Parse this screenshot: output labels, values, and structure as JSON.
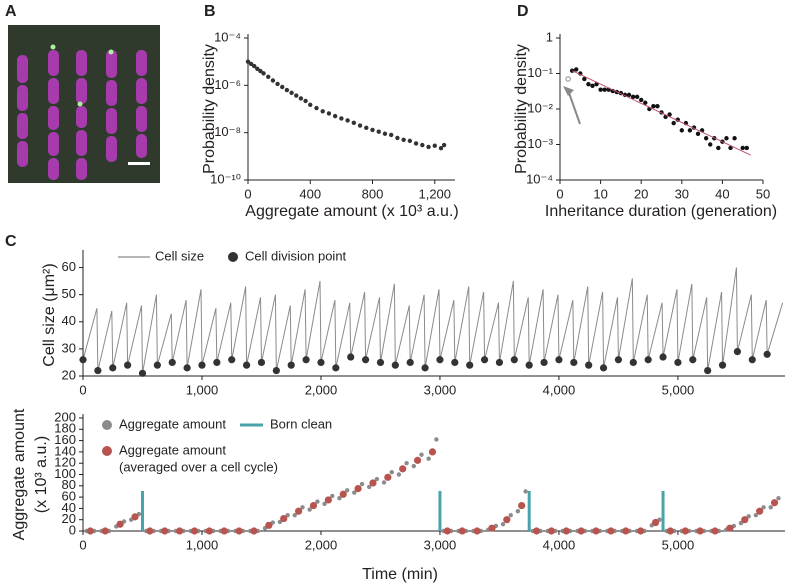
{
  "chart_data": [
    {
      "type": "image",
      "label": "A"
    },
    {
      "type": "scatter",
      "label": "B",
      "xlabel": "Aggregate amount (x 10³ a.u.)",
      "ylabel": "Probability density",
      "xlim": [
        0,
        1330
      ],
      "ylim": [
        1e-10,
        0.0001
      ],
      "ylog": true,
      "xticks": [
        0,
        400,
        800,
        {
          "value": 1200,
          "label": "1,200"
        }
      ],
      "yticks": [
        {
          "value": 1e-10,
          "label": "10⁻¹⁰"
        },
        {
          "value": 1e-08,
          "label": "10⁻⁸"
        },
        {
          "value": 1e-06,
          "label": "10⁻⁶"
        },
        {
          "value": 0.0001,
          "label": "10⁻⁴"
        }
      ],
      "series": [
        {
          "color": "#333333",
          "x": [
            0,
            20,
            40,
            60,
            80,
            100,
            130,
            160,
            190,
            220,
            250,
            280,
            310,
            340,
            370,
            400,
            440,
            480,
            520,
            560,
            600,
            640,
            680,
            720,
            760,
            800,
            840,
            880,
            920,
            960,
            1000,
            1040,
            1080,
            1120,
            1160,
            1200,
            1240,
            1260
          ],
          "values": [
            1e-05,
            8e-06,
            6.5e-06,
            5e-06,
            4e-06,
            3.2e-06,
            2.3e-06,
            1.6e-06,
            1.15e-06,
            8.5e-07,
            6.3e-07,
            4.8e-07,
            3.7e-07,
            2.8e-07,
            2.2e-07,
            1.5e-07,
            1.1e-07,
            8e-08,
            6.5e-08,
            5e-08,
            4e-08,
            3.3e-08,
            2.6e-08,
            2e-08,
            1.6e-08,
            1.3e-08,
            1.1e-08,
            9e-09,
            8e-09,
            6e-09,
            5e-09,
            4.5e-09,
            3.5e-09,
            3e-09,
            2.5e-09,
            2.8e-09,
            2.2e-09,
            3e-09
          ]
        }
      ]
    },
    {
      "type": "scatter",
      "label": "D",
      "xlabel": "Inheritance duration (generation)",
      "ylabel": "Probability density",
      "xlim": [
        0,
        50
      ],
      "ylim": [
        0.0001,
        1
      ],
      "ylog": true,
      "xticks": [
        0,
        10,
        20,
        30,
        40,
        50
      ],
      "yticks": [
        {
          "value": 0.0001,
          "label": "10⁻⁴"
        },
        {
          "value": 0.001,
          "label": "10⁻³"
        },
        {
          "value": 0.01,
          "label": "10⁻²"
        },
        {
          "value": 0.1,
          "label": "10⁻¹"
        },
        1
      ],
      "series": [
        {
          "color": "#111111",
          "x": [
            3,
            4,
            5,
            6,
            7,
            8,
            9,
            10,
            11,
            12,
            13,
            14,
            15,
            16,
            17,
            18,
            19,
            20,
            21,
            22,
            23,
            24,
            25,
            26,
            27,
            28,
            29,
            30,
            31,
            32,
            33,
            34,
            35,
            36,
            37,
            38,
            39,
            40,
            41,
            42,
            43,
            45,
            46
          ],
          "values": [
            0.12,
            0.13,
            0.1,
            0.07,
            0.05,
            0.045,
            0.05,
            0.035,
            0.035,
            0.035,
            0.032,
            0.03,
            0.028,
            0.025,
            0.025,
            0.022,
            0.022,
            0.018,
            0.015,
            0.01,
            0.012,
            0.012,
            0.008,
            0.006,
            0.007,
            0.004,
            0.005,
            0.0025,
            0.004,
            0.0025,
            0.003,
            0.002,
            0.0025,
            0.0015,
            0.001,
            0.0015,
            0.0008,
            0.0012,
            0.0015,
            0.0008,
            0.0015,
            0.0008,
            0.0008
          ]
        },
        {
          "color": "#888888",
          "hollow": true,
          "x": [
            2
          ],
          "values": [
            0.07
          ]
        },
        {
          "type": "line",
          "color": "#c0506a",
          "x": [
            3,
            47
          ],
          "values": [
            0.12,
            0.0005
          ]
        }
      ]
    },
    {
      "type": "line",
      "label": "C",
      "ylabel": "Cell size (μm²)",
      "xlim": [
        0,
        5900
      ],
      "ylim": [
        20,
        65
      ],
      "xticks": [
        0,
        {
          "value": 1000,
          "label": "1,000"
        },
        {
          "value": 2000,
          "label": "2,000"
        },
        {
          "value": 3000,
          "label": "3,000"
        },
        {
          "value": 4000,
          "label": "4,000"
        },
        {
          "value": 5000,
          "label": "5,000"
        }
      ],
      "yticks": [
        20,
        30,
        40,
        50,
        60
      ],
      "series": [
        {
          "name": "Cell size",
          "type": "line",
          "color": "#8a8a8a",
          "x": [
            0,
            117,
            125,
            242,
            250,
            367,
            375,
            492,
            500,
            617,
            625,
            742,
            750,
            867,
            875,
            992,
            1000,
            1117,
            1125,
            1242,
            1250,
            1367,
            1375,
            1492,
            1500,
            1617,
            1625,
            1742,
            1750,
            1867,
            1875,
            1992,
            2000,
            2117,
            2125,
            2242,
            2250,
            2367,
            2375,
            2492,
            2500,
            2617,
            2625,
            2742,
            2750,
            2867,
            2875,
            2992,
            3000,
            3117,
            3125,
            3242,
            3250,
            3367,
            3375,
            3492,
            3500,
            3617,
            3625,
            3742,
            3750,
            3867,
            3875,
            3992,
            4000,
            4117,
            4125,
            4242,
            4250,
            4367,
            4375,
            4492,
            4500,
            4617,
            4625,
            4742,
            4750,
            4867,
            4875,
            4992,
            5000,
            5117,
            5125,
            5242,
            5250,
            5367,
            5375,
            5492,
            5500,
            5617,
            5625,
            5742,
            5750,
            5880
          ],
          "values": [
            26,
            45,
            22,
            44,
            23,
            47,
            24,
            46,
            21,
            50,
            24,
            43,
            25,
            48,
            23,
            52,
            24,
            45,
            25,
            47,
            26,
            53,
            24,
            49,
            25,
            50,
            22,
            46,
            24,
            52,
            26,
            55,
            25,
            48,
            23,
            47,
            27,
            51,
            26,
            49,
            25,
            54,
            24,
            46,
            25,
            50,
            23,
            52,
            26,
            48,
            25,
            53,
            24,
            51,
            26,
            47,
            25,
            55,
            26,
            49,
            24,
            52,
            25,
            50,
            26,
            48,
            25,
            53,
            24,
            51,
            23,
            49,
            26,
            56,
            25,
            50,
            26,
            47,
            27,
            52,
            25,
            54,
            26,
            49,
            22,
            51,
            24,
            60,
            29,
            50,
            26,
            48,
            28,
            47
          ]
        },
        {
          "name": "Cell division point",
          "type": "scatter",
          "color": "#333333",
          "x": [
            0,
            125,
            250,
            375,
            500,
            625,
            750,
            875,
            1000,
            1125,
            1250,
            1375,
            1500,
            1625,
            1750,
            1875,
            2000,
            2125,
            2250,
            2375,
            2500,
            2625,
            2750,
            2875,
            3000,
            3125,
            3250,
            3375,
            3500,
            3625,
            3750,
            3875,
            4000,
            4125,
            4250,
            4375,
            4500,
            4625,
            4750,
            4875,
            5000,
            5125,
            5250,
            5375,
            5500,
            5625,
            5750
          ],
          "values": [
            26,
            22,
            23,
            24,
            21,
            24,
            25,
            23,
            24,
            25,
            26,
            24,
            25,
            22,
            24,
            26,
            25,
            23,
            27,
            26,
            25,
            24,
            25,
            23,
            26,
            25,
            24,
            26,
            25,
            26,
            24,
            25,
            26,
            25,
            24,
            23,
            26,
            25,
            26,
            27,
            25,
            26,
            22,
            24,
            29,
            26,
            28
          ]
        }
      ]
    },
    {
      "type": "scatter",
      "ylabel": [
        "Aggregate amount",
        "(x 10³ a.u.)"
      ],
      "xlabel": "Time (min)",
      "xlim": [
        0,
        5900
      ],
      "ylim": [
        0,
        200
      ],
      "xticks": [
        0,
        {
          "value": 1000,
          "label": "1,000"
        },
        {
          "value": 2000,
          "label": "2,000"
        },
        {
          "value": 3000,
          "label": "3,000"
        },
        {
          "value": 4000,
          "label": "4,000"
        },
        {
          "value": 5000,
          "label": "5,000"
        }
      ],
      "yticks": [
        0,
        20,
        40,
        60,
        80,
        100,
        120,
        140,
        160,
        180,
        200
      ],
      "series": [
        {
          "name": "Aggregate amount",
          "type": "scatter",
          "color": "#8c8c8c",
          "x": [
            30,
            95,
            155,
            220,
            280,
            345,
            405,
            470,
            530,
            595,
            655,
            720,
            780,
            845,
            905,
            970,
            1030,
            1095,
            1155,
            1220,
            1280,
            1345,
            1405,
            1470,
            1530,
            1595,
            1655,
            1720,
            1780,
            1845,
            1905,
            1970,
            2030,
            2095,
            2155,
            2220,
            2280,
            2345,
            2405,
            2470,
            2530,
            2595,
            2655,
            2720,
            2780,
            2845,
            2905,
            2970,
            3030,
            3095,
            3155,
            3220,
            3280,
            3345,
            3405,
            3470,
            3530,
            3595,
            3655,
            3720,
            3780,
            3845,
            3905,
            3970,
            4030,
            4095,
            4155,
            4220,
            4280,
            4345,
            4405,
            4470,
            4530,
            4595,
            4655,
            4720,
            4780,
            4845,
            4905,
            4970,
            5030,
            5095,
            5155,
            5220,
            5280,
            5345,
            5405,
            5470,
            5530,
            5595,
            5655,
            5720,
            5780,
            5845
          ],
          "values": [
            0,
            0,
            0,
            0,
            8,
            17,
            20,
            30,
            0,
            0,
            0,
            0,
            0,
            0,
            0,
            0,
            0,
            0,
            0,
            0,
            0,
            0,
            0,
            0,
            5,
            15,
            16,
            28,
            28,
            42,
            38,
            52,
            48,
            62,
            58,
            72,
            68,
            83,
            78,
            92,
            86,
            104,
            100,
            120,
            115,
            135,
            128,
            162,
            0,
            0,
            0,
            0,
            0,
            0,
            2,
            9,
            12,
            28,
            35,
            70,
            0,
            0,
            0,
            0,
            0,
            0,
            0,
            0,
            0,
            0,
            0,
            0,
            0,
            0,
            0,
            0,
            10,
            20,
            0,
            0,
            0,
            0,
            0,
            0,
            0,
            0,
            2,
            9,
            14,
            26,
            28,
            42,
            42,
            58
          ]
        },
        {
          "name": [
            "Aggregate amount",
            "(averaged over a cell cycle)"
          ],
          "type": "scatter",
          "color": "#b85450",
          "big": true,
          "x": [
            62,
            187,
            312,
            437,
            562,
            687,
            812,
            937,
            1062,
            1187,
            1312,
            1437,
            1562,
            1687,
            1812,
            1937,
            2062,
            2187,
            2312,
            2437,
            2562,
            2687,
            2812,
            2937,
            3062,
            3187,
            3312,
            3437,
            3562,
            3687,
            3812,
            3937,
            4062,
            4187,
            4312,
            4437,
            4562,
            4687,
            4812,
            4937,
            5062,
            5187,
            5312,
            5437,
            5562,
            5687,
            5812
          ],
          "values": [
            0,
            0,
            12,
            25,
            0,
            0,
            0,
            0,
            0,
            0,
            0,
            0,
            10,
            22,
            35,
            45,
            55,
            65,
            75,
            85,
            95,
            110,
            125,
            140,
            0,
            0,
            0,
            5,
            20,
            45,
            0,
            0,
            0,
            0,
            0,
            0,
            0,
            0,
            15,
            0,
            0,
            0,
            0,
            5,
            20,
            35,
            50
          ]
        },
        {
          "name": "Born clean",
          "type": "vline",
          "color": "#4aa3a8",
          "x": [
            500,
            3000,
            3750,
            4875
          ]
        }
      ]
    }
  ]
}
